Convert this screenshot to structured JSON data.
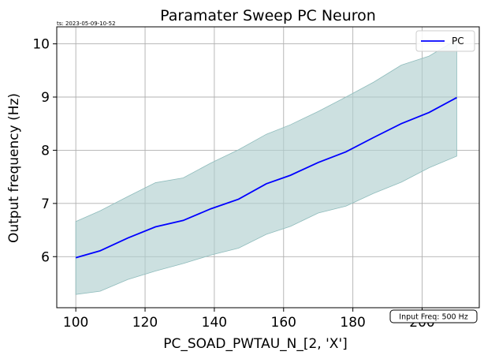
{
  "timestamp": "ts: 2023-05-09-10-52",
  "badge": "Input Freq: 500 Hz",
  "colors": {
    "line": "#0000ff",
    "band": "#b0d0d0",
    "grid": "#b0b0b0"
  },
  "chart_data": {
    "type": "line",
    "title": "Paramater Sweep PC Neuron",
    "xlabel": "PC_SOAD_PWTAU_N_[2, 'X']",
    "ylabel": "Output frequency (Hz)",
    "xlim": [
      94.5,
      216.5
    ],
    "ylim": [
      5.04,
      10.32
    ],
    "xticks": [
      100,
      120,
      140,
      160,
      180,
      200
    ],
    "yticks": [
      6,
      7,
      8,
      9,
      10
    ],
    "grid": true,
    "legend_position": "top-right",
    "x": [
      100,
      107,
      115,
      123,
      131,
      139,
      147,
      155,
      162,
      170,
      178,
      186,
      194,
      202,
      210
    ],
    "series": [
      {
        "name": "PC",
        "values": [
          5.98,
          6.11,
          6.35,
          6.56,
          6.68,
          6.9,
          7.08,
          7.37,
          7.53,
          7.77,
          7.97,
          8.24,
          8.5,
          8.71,
          8.99
        ],
        "upper": [
          6.66,
          6.86,
          7.13,
          7.39,
          7.48,
          7.76,
          8.01,
          8.3,
          8.48,
          8.73,
          9.0,
          9.28,
          9.6,
          9.77,
          10.08
        ],
        "lower": [
          5.29,
          5.35,
          5.57,
          5.73,
          5.87,
          6.03,
          6.16,
          6.42,
          6.57,
          6.82,
          6.95,
          7.19,
          7.4,
          7.67,
          7.89
        ]
      }
    ]
  }
}
